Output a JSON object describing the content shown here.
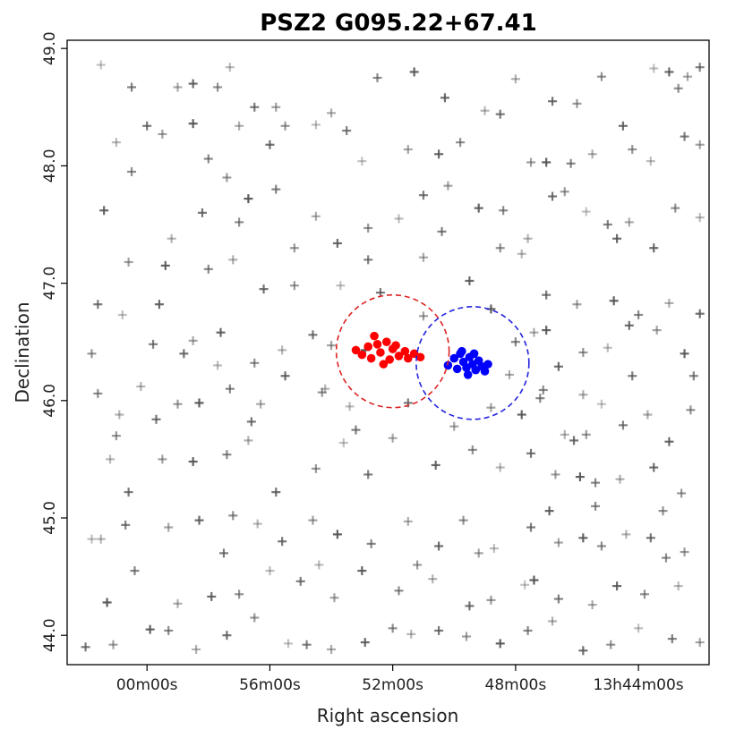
{
  "chart_data": {
    "type": "scatter",
    "title": "PSZ2 G095.22+67.41",
    "xlabel": "Right ascension",
    "ylabel": "Declination",
    "x_tick_labels": [
      "00m00s",
      "56m00s",
      "52m00s",
      "48m00s",
      "13h44m00s"
    ],
    "x_tick_values_min": [
      0,
      4,
      8,
      12,
      16
    ],
    "y_tick_labels": [
      "44.0",
      "45.0",
      "46.0",
      "47.0",
      "48.0",
      "49.0"
    ],
    "y_tick_values": [
      44.0,
      45.0,
      46.0,
      47.0,
      48.0,
      49.0
    ],
    "x_axis_note": "x values are minutes of right ascension before 14h00m00s; axis increases to the right (RA decreases)",
    "xlim": [
      -2.6,
      18.3
    ],
    "ylim": [
      43.75,
      49.07
    ],
    "grid": false,
    "legend": "none",
    "colors": {
      "background_points": "#555555",
      "red_members": "#ff0000",
      "blue_members": "#0000ff",
      "red_circle": "#dd2222",
      "blue_circle": "#2222dd"
    },
    "circles": [
      {
        "name": "red-aperture",
        "center": [
          8.0,
          46.42
        ],
        "radius_deg": 0.48,
        "color": "#dd2222"
      },
      {
        "name": "blue-aperture",
        "center": [
          10.6,
          46.32
        ],
        "radius_deg": 0.48,
        "color": "#2222dd"
      }
    ],
    "series": [
      {
        "name": "",
        "marker": "plus",
        "color": "#555555",
        "points": [
          [
            -1.5,
            48.86
          ],
          [
            -0.5,
            48.67
          ],
          [
            1.0,
            48.67
          ],
          [
            1.5,
            48.7
          ],
          [
            2.3,
            48.67
          ],
          [
            2.7,
            48.84
          ],
          [
            3.5,
            48.5
          ],
          [
            4.2,
            48.5
          ],
          [
            8.7,
            48.8
          ],
          [
            7.5,
            48.75
          ],
          [
            12.0,
            48.74
          ],
          [
            13.2,
            48.55
          ],
          [
            14.0,
            48.53
          ],
          [
            16.5,
            48.83
          ],
          [
            18.0,
            48.84
          ],
          [
            17.6,
            48.76
          ],
          [
            17.0,
            48.8
          ],
          [
            17.3,
            48.66
          ],
          [
            -1.0,
            48.2
          ],
          [
            0.0,
            48.34
          ],
          [
            0.5,
            48.27
          ],
          [
            1.5,
            48.36
          ],
          [
            2.0,
            48.06
          ],
          [
            3.0,
            48.34
          ],
          [
            4.0,
            48.18
          ],
          [
            4.5,
            48.34
          ],
          [
            5.5,
            48.35
          ],
          [
            6.5,
            48.3
          ],
          [
            8.5,
            48.14
          ],
          [
            9.5,
            48.1
          ],
          [
            10.2,
            48.2
          ],
          [
            11.0,
            48.47
          ],
          [
            11.5,
            48.44
          ],
          [
            12.5,
            48.03
          ],
          [
            13.0,
            48.03
          ],
          [
            13.8,
            48.02
          ],
          [
            14.5,
            48.1
          ],
          [
            15.5,
            48.34
          ],
          [
            15.8,
            48.14
          ],
          [
            16.4,
            48.04
          ],
          [
            17.5,
            48.25
          ],
          [
            18.0,
            48.18
          ],
          [
            -1.4,
            47.62
          ],
          [
            -0.5,
            47.95
          ],
          [
            0.8,
            47.38
          ],
          [
            1.8,
            47.6
          ],
          [
            2.6,
            47.9
          ],
          [
            3.3,
            47.72
          ],
          [
            4.2,
            47.8
          ],
          [
            5.5,
            47.57
          ],
          [
            6.2,
            47.34
          ],
          [
            7.2,
            47.47
          ],
          [
            8.2,
            47.55
          ],
          [
            9.0,
            47.75
          ],
          [
            9.8,
            47.83
          ],
          [
            10.8,
            47.64
          ],
          [
            11.6,
            47.62
          ],
          [
            12.4,
            47.38
          ],
          [
            13.2,
            47.74
          ],
          [
            13.6,
            47.78
          ],
          [
            14.3,
            47.61
          ],
          [
            15.0,
            47.5
          ],
          [
            15.7,
            47.52
          ],
          [
            16.5,
            47.3
          ],
          [
            17.2,
            47.64
          ],
          [
            18.0,
            47.56
          ],
          [
            -1.6,
            46.82
          ],
          [
            -0.6,
            47.18
          ],
          [
            0.6,
            47.15
          ],
          [
            2.0,
            47.12
          ],
          [
            2.8,
            47.2
          ],
          [
            3.8,
            46.95
          ],
          [
            4.8,
            46.98
          ],
          [
            6.3,
            46.98
          ],
          [
            7.2,
            47.2
          ],
          [
            9.0,
            47.22
          ],
          [
            10.5,
            47.02
          ],
          [
            11.5,
            47.3
          ],
          [
            12.2,
            47.25
          ],
          [
            13.0,
            46.9
          ],
          [
            14.0,
            46.82
          ],
          [
            15.2,
            46.85
          ],
          [
            16.0,
            46.73
          ],
          [
            17.0,
            46.83
          ],
          [
            18.0,
            46.74
          ],
          [
            -1.8,
            46.4
          ],
          [
            -0.8,
            46.73
          ],
          [
            0.2,
            46.48
          ],
          [
            1.5,
            46.51
          ],
          [
            2.4,
            46.58
          ],
          [
            3.5,
            46.32
          ],
          [
            4.4,
            46.43
          ],
          [
            5.4,
            46.56
          ],
          [
            6.0,
            46.47
          ],
          [
            7.1,
            46.43
          ],
          [
            12.0,
            46.5
          ],
          [
            12.6,
            46.58
          ],
          [
            13.4,
            46.29
          ],
          [
            14.2,
            46.41
          ],
          [
            15.0,
            46.45
          ],
          [
            15.8,
            46.21
          ],
          [
            16.6,
            46.6
          ],
          [
            17.5,
            46.4
          ],
          [
            -1.6,
            46.06
          ],
          [
            -0.9,
            45.88
          ],
          [
            0.3,
            45.84
          ],
          [
            1.0,
            45.97
          ],
          [
            1.7,
            45.98
          ],
          [
            2.7,
            46.1
          ],
          [
            3.7,
            45.97
          ],
          [
            4.5,
            46.21
          ],
          [
            5.7,
            46.07
          ],
          [
            6.6,
            45.95
          ],
          [
            8.5,
            45.98
          ],
          [
            11.2,
            45.94
          ],
          [
            12.2,
            45.88
          ],
          [
            12.9,
            46.09
          ],
          [
            13.6,
            45.71
          ],
          [
            13.9,
            45.66
          ],
          [
            14.3,
            45.71
          ],
          [
            14.8,
            45.97
          ],
          [
            15.5,
            45.79
          ],
          [
            16.3,
            45.88
          ],
          [
            17.0,
            45.65
          ],
          [
            17.7,
            45.92
          ],
          [
            -1.2,
            45.5
          ],
          [
            -0.6,
            45.22
          ],
          [
            0.5,
            45.5
          ],
          [
            1.5,
            45.48
          ],
          [
            2.6,
            45.54
          ],
          [
            3.3,
            45.66
          ],
          [
            4.2,
            45.22
          ],
          [
            5.5,
            45.42
          ],
          [
            6.4,
            45.64
          ],
          [
            7.2,
            45.37
          ],
          [
            8.0,
            45.68
          ],
          [
            9.4,
            45.45
          ],
          [
            10.6,
            45.58
          ],
          [
            11.5,
            45.43
          ],
          [
            12.5,
            45.55
          ],
          [
            13.3,
            45.37
          ],
          [
            14.1,
            45.35
          ],
          [
            14.6,
            45.3
          ],
          [
            15.4,
            45.33
          ],
          [
            16.5,
            45.43
          ],
          [
            17.4,
            45.21
          ],
          [
            -1.8,
            44.82
          ],
          [
            -0.7,
            44.94
          ],
          [
            0.7,
            44.92
          ],
          [
            1.7,
            44.98
          ],
          [
            2.8,
            45.02
          ],
          [
            3.6,
            44.95
          ],
          [
            4.4,
            44.8
          ],
          [
            5.4,
            44.98
          ],
          [
            6.2,
            44.86
          ],
          [
            7.3,
            44.78
          ],
          [
            8.5,
            44.97
          ],
          [
            9.5,
            44.76
          ],
          [
            10.3,
            44.98
          ],
          [
            11.3,
            44.74
          ],
          [
            12.5,
            44.92
          ],
          [
            13.4,
            44.79
          ],
          [
            14.2,
            44.83
          ],
          [
            14.8,
            44.76
          ],
          [
            15.6,
            44.86
          ],
          [
            16.4,
            44.83
          ],
          [
            17.5,
            44.71
          ],
          [
            -1.3,
            44.28
          ],
          [
            -0.4,
            44.55
          ],
          [
            1.0,
            44.27
          ],
          [
            2.1,
            44.33
          ],
          [
            3.0,
            44.35
          ],
          [
            4.0,
            44.55
          ],
          [
            5.0,
            44.46
          ],
          [
            6.1,
            44.32
          ],
          [
            7.0,
            44.55
          ],
          [
            8.2,
            44.38
          ],
          [
            9.3,
            44.48
          ],
          [
            10.5,
            44.25
          ],
          [
            11.2,
            44.3
          ],
          [
            12.3,
            44.43
          ],
          [
            13.4,
            44.31
          ],
          [
            14.5,
            44.26
          ],
          [
            15.3,
            44.42
          ],
          [
            16.2,
            44.35
          ],
          [
            17.3,
            44.42
          ],
          [
            -2.0,
            43.9
          ],
          [
            -1.1,
            43.92
          ],
          [
            0.1,
            44.05
          ],
          [
            0.7,
            44.04
          ],
          [
            1.6,
            43.88
          ],
          [
            2.6,
            44.0
          ],
          [
            3.5,
            44.15
          ],
          [
            4.6,
            43.93
          ],
          [
            5.2,
            43.92
          ],
          [
            6.0,
            43.88
          ],
          [
            7.1,
            43.94
          ],
          [
            8.0,
            44.06
          ],
          [
            8.6,
            44.01
          ],
          [
            9.5,
            44.04
          ],
          [
            10.4,
            43.99
          ],
          [
            11.5,
            43.93
          ],
          [
            12.4,
            44.04
          ],
          [
            13.2,
            44.12
          ],
          [
            14.2,
            43.87
          ],
          [
            15.1,
            43.92
          ],
          [
            16.0,
            44.06
          ],
          [
            17.1,
            43.97
          ],
          [
            18.0,
            43.94
          ],
          [
            0.4,
            46.82
          ],
          [
            3.0,
            47.52
          ],
          [
            5.8,
            46.1
          ],
          [
            7.6,
            46.92
          ],
          [
            9.0,
            46.72
          ],
          [
            11.2,
            46.78
          ],
          [
            12.8,
            46.02
          ],
          [
            14.2,
            46.05
          ],
          [
            15.7,
            46.64
          ],
          [
            -1.0,
            45.7
          ],
          [
            2.3,
            46.3
          ],
          [
            6.8,
            45.75
          ],
          [
            10.0,
            45.78
          ],
          [
            13.1,
            45.06
          ],
          [
            16.9,
            44.66
          ],
          [
            -1.5,
            44.82
          ],
          [
            3.4,
            45.82
          ],
          [
            8.8,
            44.6
          ],
          [
            12.6,
            44.47
          ],
          [
            17.8,
            46.21
          ],
          [
            6.0,
            48.45
          ],
          [
            9.7,
            48.58
          ],
          [
            14.8,
            48.76
          ],
          [
            5.6,
            44.6
          ],
          [
            2.5,
            44.7
          ],
          [
            10.8,
            44.7
          ],
          [
            13.0,
            46.6
          ],
          [
            14.6,
            45.1
          ],
          [
            -0.2,
            46.12
          ],
          [
            1.2,
            46.4
          ],
          [
            4.8,
            47.3
          ],
          [
            7.0,
            48.04
          ],
          [
            9.6,
            47.44
          ],
          [
            11.8,
            46.22
          ],
          [
            15.3,
            47.38
          ],
          [
            16.8,
            45.06
          ]
        ]
      },
      {
        "name": "",
        "marker": "circle",
        "color": "#ff0000",
        "points": [
          [
            6.8,
            46.43
          ],
          [
            7.0,
            46.39
          ],
          [
            7.2,
            46.46
          ],
          [
            7.3,
            46.36
          ],
          [
            7.5,
            46.48
          ],
          [
            7.6,
            46.41
          ],
          [
            7.8,
            46.5
          ],
          [
            7.9,
            46.35
          ],
          [
            8.0,
            46.44
          ],
          [
            8.2,
            46.38
          ],
          [
            8.4,
            46.42
          ],
          [
            8.5,
            46.36
          ],
          [
            8.7,
            46.4
          ],
          [
            8.9,
            46.37
          ],
          [
            7.4,
            46.55
          ],
          [
            7.7,
            46.31
          ],
          [
            8.1,
            46.47
          ]
        ]
      },
      {
        "name": "",
        "marker": "circle",
        "color": "#0000ff",
        "points": [
          [
            9.8,
            46.3
          ],
          [
            10.0,
            46.36
          ],
          [
            10.1,
            46.27
          ],
          [
            10.2,
            46.4
          ],
          [
            10.3,
            46.33
          ],
          [
            10.4,
            46.28
          ],
          [
            10.5,
            46.37
          ],
          [
            10.6,
            46.31
          ],
          [
            10.7,
            46.26
          ],
          [
            10.8,
            46.34
          ],
          [
            10.9,
            46.29
          ],
          [
            11.0,
            46.25
          ],
          [
            11.1,
            46.31
          ],
          [
            10.45,
            46.22
          ],
          [
            10.25,
            46.42
          ],
          [
            10.65,
            46.4
          ]
        ]
      }
    ]
  }
}
